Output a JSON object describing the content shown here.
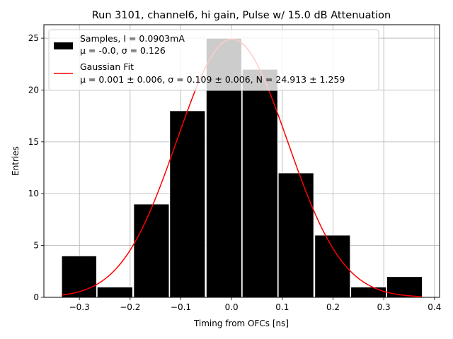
{
  "chart_data": {
    "type": "histogram",
    "title": "Run 3101, channel6, hi gain, Pulse w/ 15.0 dB Attenuation",
    "xlabel": "Timing from OFCs [ns]",
    "ylabel": "Entries",
    "xlim": [
      -0.37,
      0.41
    ],
    "ylim": [
      0,
      26.3
    ],
    "xticks": [
      -0.3,
      -0.2,
      -0.1,
      0.0,
      0.1,
      0.2,
      0.3,
      0.4
    ],
    "xtick_labels": [
      "−0.3",
      "−0.2",
      "−0.1",
      "0.0",
      "0.1",
      "0.2",
      "0.3",
      "0.4"
    ],
    "yticks": [
      0,
      5,
      10,
      15,
      20,
      25
    ],
    "ytick_labels": [
      "0",
      "5",
      "10",
      "15",
      "20",
      "25"
    ],
    "grid": true,
    "bins": [
      {
        "left": -0.335,
        "right": -0.266,
        "count": 4
      },
      {
        "left": -0.265,
        "right": -0.195,
        "count": 1
      },
      {
        "left": -0.193,
        "right": -0.123,
        "count": 9
      },
      {
        "left": -0.122,
        "right": -0.052,
        "count": 18
      },
      {
        "left": -0.05,
        "right": 0.02,
        "count": 25
      },
      {
        "left": 0.021,
        "right": 0.091,
        "count": 22
      },
      {
        "left": 0.092,
        "right": 0.162,
        "count": 12
      },
      {
        "left": 0.164,
        "right": 0.234,
        "count": 6
      },
      {
        "left": 0.235,
        "right": 0.305,
        "count": 1
      },
      {
        "left": 0.306,
        "right": 0.376,
        "count": 2
      }
    ],
    "fit": {
      "type": "gaussian",
      "mu": 0.001,
      "sigma": 0.109,
      "N": 24.913,
      "x_range": [
        -0.335,
        0.375
      ]
    },
    "legend_placement": "top-left",
    "legend": {
      "samples_line1": "Samples, I = 0.0903mA",
      "samples_line2": "μ = -0.0, σ = 0.126",
      "fit_line1": "Gaussian Fit",
      "fit_line2": "μ = 0.001 ± 0.006, σ = 0.109 ± 0.006, N = 24.913 ± 1.259"
    },
    "colors": {
      "bars": "#000000",
      "bar_edge": "#ffffff",
      "fit": "#ff0000",
      "grid": "#b0b0b0"
    }
  }
}
